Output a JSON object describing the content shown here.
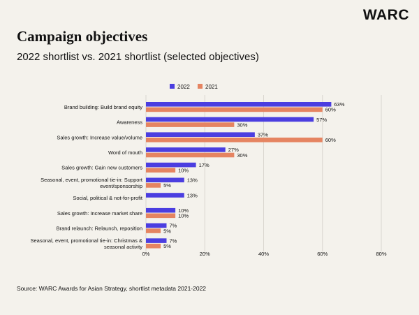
{
  "header": {
    "brand": "WARC",
    "title": "Campaign objectives",
    "subtitle": "2022 shortlist vs. 2021 shortlist (selected objectives)"
  },
  "footer": {
    "source": "Source: WARC Awards for Asian Strategy, shortlist metadata 2021-2022"
  },
  "colors": {
    "series_2022": "#4b3ee0",
    "series_2021": "#e58461",
    "grid": "#d9d6cf"
  },
  "chart_data": {
    "type": "bar",
    "orientation": "horizontal",
    "legend_position": "top",
    "grid": true,
    "xlim": [
      0,
      80
    ],
    "x_ticks": [
      "0%",
      "20%",
      "40%",
      "60%",
      "80%"
    ],
    "x_tick_values": [
      0,
      20,
      40,
      60,
      80
    ],
    "categories": [
      [
        "Brand building: Build brand equity"
      ],
      [
        "Awareness"
      ],
      [
        "Sales growth: Increase value/volume"
      ],
      [
        "Word of mouth"
      ],
      [
        "Sales growth: Gain new customers"
      ],
      [
        "Seasonal, event, promotional tie-in: Support",
        "event/sponsorship"
      ],
      [
        "Social, political & not-for-profit"
      ],
      [
        "Sales growth: Increase market share"
      ],
      [
        "Brand relaunch: Relaunch, reposition"
      ],
      [
        "Seasonal, event, promotional tie-in: Christmas &",
        "seasonal activity"
      ]
    ],
    "series": [
      {
        "name": "2022",
        "values": [
          63,
          57,
          37,
          27,
          17,
          13,
          13,
          10,
          7,
          7
        ],
        "labels": [
          "63%",
          "57%",
          "37%",
          "27%",
          "17%",
          "13%",
          "13%",
          "10%",
          "7%",
          "7%"
        ]
      },
      {
        "name": "2021",
        "values": [
          60,
          30,
          60,
          30,
          10,
          5,
          null,
          10,
          5,
          5
        ],
        "labels": [
          "60%",
          "30%",
          "60%",
          "30%",
          "10%",
          "5%",
          null,
          "10%",
          "5%",
          "5%"
        ]
      }
    ]
  }
}
